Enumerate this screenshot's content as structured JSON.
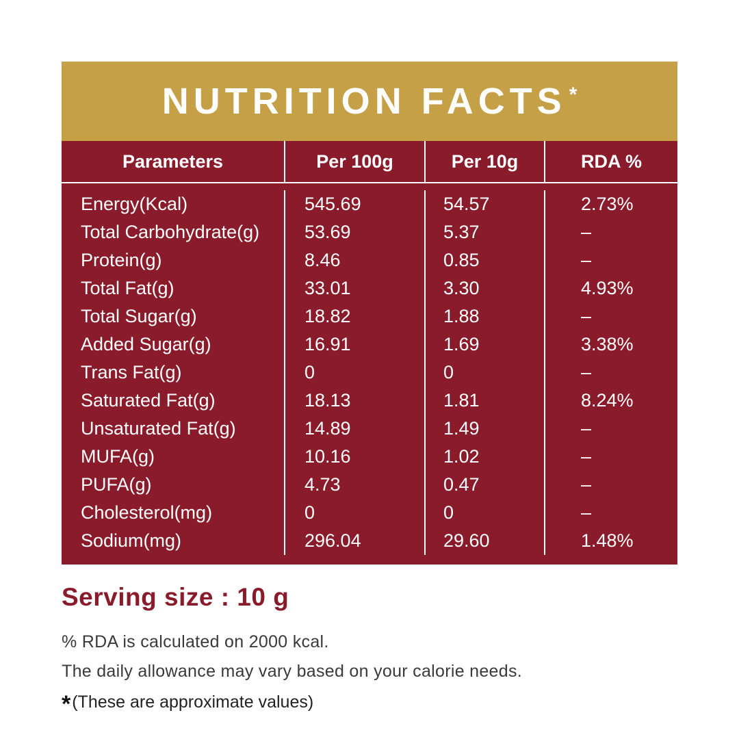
{
  "title": {
    "text": "NUTRITION FACTS",
    "asterisk": "*"
  },
  "table": {
    "headers": [
      "Parameters",
      "Per 100g",
      "Per 10g",
      "RDA %"
    ],
    "rows": [
      {
        "parameter": "Energy(Kcal)",
        "per100g": "545.69",
        "per10g": "54.57",
        "rda": "2.73%"
      },
      {
        "parameter": "Total Carbohydrate(g)",
        "per100g": "53.69",
        "per10g": "5.37",
        "rda": "–"
      },
      {
        "parameter": "Protein(g)",
        "per100g": "8.46",
        "per10g": "0.85",
        "rda": "–"
      },
      {
        "parameter": "Total Fat(g)",
        "per100g": "33.01",
        "per10g": "3.30",
        "rda": "4.93%"
      },
      {
        "parameter": "Total Sugar(g)",
        "per100g": "18.82",
        "per10g": "1.88",
        "rda": "–"
      },
      {
        "parameter": "Added Sugar(g)",
        "per100g": "16.91",
        "per10g": "1.69",
        "rda": "3.38%"
      },
      {
        "parameter": "Trans Fat(g)",
        "per100g": "0",
        "per10g": "0",
        "rda": "–"
      },
      {
        "parameter": "Saturated Fat(g)",
        "per100g": "18.13",
        "per10g": "1.81",
        "rda": "8.24%"
      },
      {
        "parameter": "Unsaturated Fat(g)",
        "per100g": "14.89",
        "per10g": "1.49",
        "rda": "–"
      },
      {
        "parameter": "MUFA(g)",
        "per100g": "10.16",
        "per10g": "1.02",
        "rda": "–"
      },
      {
        "parameter": "PUFA(g)",
        "per100g": "4.73",
        "per10g": "0.47",
        "rda": "–"
      },
      {
        "parameter": "Cholesterol(mg)",
        "per100g": "0",
        "per10g": "0",
        "rda": "–"
      },
      {
        "parameter": "Sodium(mg)",
        "per100g": "296.04",
        "per10g": "29.60",
        "rda": "1.48%"
      }
    ]
  },
  "footer": {
    "serving_size": "Serving size : 10 g",
    "rda_note": "% RDA is calculated on 2000 kcal.",
    "allowance_note": "The daily allowance may vary based on your calorie needs.",
    "approx_star": "*",
    "approx_note": "(These are approximate values)"
  },
  "colors": {
    "gold": "#c5a046",
    "maroon": "#8a1b2b",
    "white": "#ffffff",
    "note_text": "#3a3a3a"
  }
}
